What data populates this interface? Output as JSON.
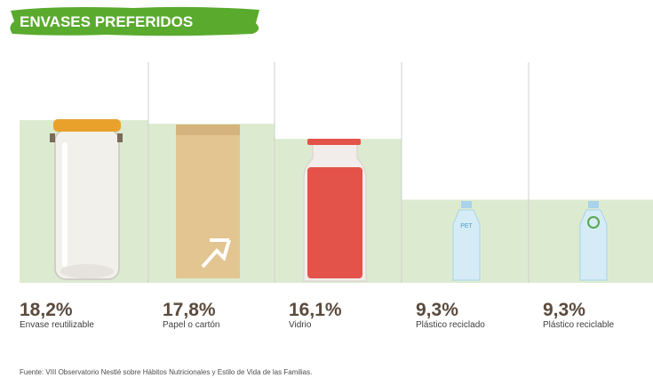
{
  "chart_data": {
    "type": "bar",
    "title": "ENVASES PREFERIDOS",
    "categories": [
      "Envase reutilizable",
      "Papel o cartón",
      "Vidrio",
      "Plástico reciclado",
      "Plástico reciclable"
    ],
    "values": [
      18.2,
      17.8,
      16.1,
      9.3,
      9.3
    ],
    "value_labels": [
      "18,2%",
      "17,8%",
      "16,1%",
      "9,3%",
      "9,3%"
    ],
    "color": "#dcebd0",
    "ylim": [
      0,
      20
    ],
    "source": "Fuente: VIII Observatorio Nestlé sobre Hábitos Nutricionales y Estilo de Vida de las Familias."
  }
}
